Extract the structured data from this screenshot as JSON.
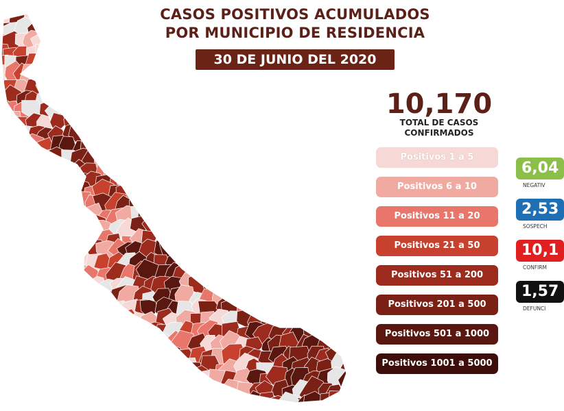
{
  "title": {
    "line1": "CASOS POSITIVOS ACUMULADOS",
    "line2": "POR MUNICIPIO DE RESIDENCIA"
  },
  "date": "30 DE JUNIO DEL 2020",
  "total": {
    "value": "10,170",
    "label_line1": "TOTAL DE CASOS",
    "label_line2": "CONFIRMADOS"
  },
  "legend": [
    {
      "label": "Positivos 1 a 5",
      "color": "#f6d9d6"
    },
    {
      "label": "Positivos 6 a 10",
      "color": "#f1aaa1"
    },
    {
      "label": "Positivos 11 a 20",
      "color": "#e9766b"
    },
    {
      "label": "Positivos 21 a 50",
      "color": "#c8412f"
    },
    {
      "label": "Positivos 51 a 200",
      "color": "#9c2b1e"
    },
    {
      "label": "Positivos 201 a 500",
      "color": "#7a2015"
    },
    {
      "label": "Positivos 501 a 1000",
      "color": "#5a170f"
    },
    {
      "label": "Positivos 1001 a 5000",
      "color": "#3d0e09"
    }
  ],
  "stats": [
    {
      "value": "6,04",
      "label": "NEGATIV",
      "color": "#8bbf4a"
    },
    {
      "value": "2,53",
      "label": "SOSPECH",
      "color": "#1f6fb5"
    },
    {
      "value": "10,1",
      "label": "CONFIRM",
      "color": "#e02020"
    },
    {
      "value": "1,57",
      "label": "DEFUNCI",
      "color": "#111111"
    }
  ],
  "map": {
    "region": "Veracruz",
    "palette": [
      "#f6d9d6",
      "#f1aaa1",
      "#e9766b",
      "#c8412f",
      "#9c2b1e",
      "#7a2015",
      "#5a170f",
      "#3d0e09"
    ],
    "no_data_color": "#e6e6e6",
    "border_color": "#ffffff"
  }
}
